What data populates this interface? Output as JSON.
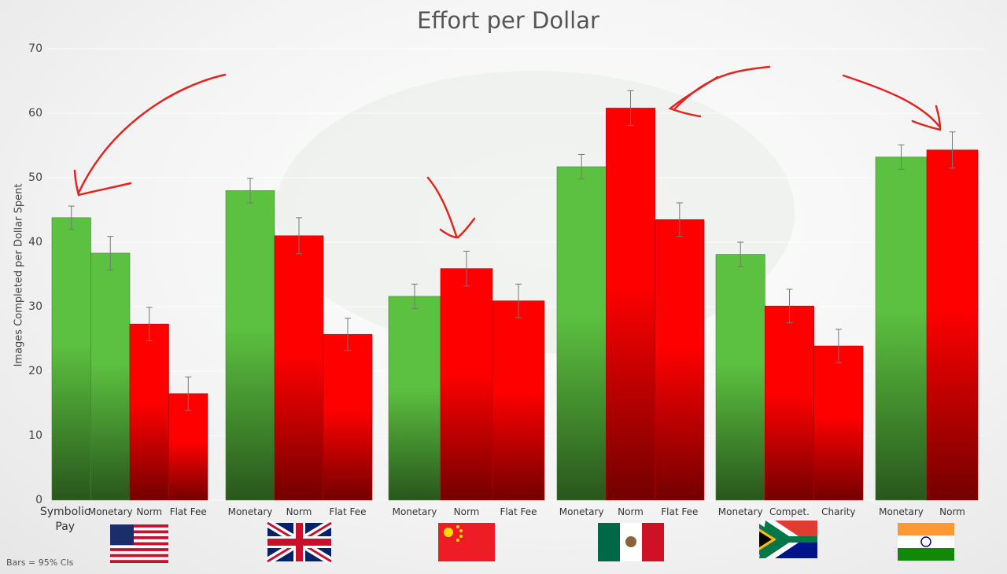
{
  "chart_data": {
    "type": "bar",
    "title": "Effort per Dollar",
    "y_label": "Images Completed per Dollar Spent",
    "note": "Bars = 95% CIs",
    "ylim": [
      0,
      70
    ],
    "yticks": [
      0,
      10,
      20,
      30,
      40,
      50,
      60,
      70
    ],
    "grid": true,
    "groups": [
      {
        "bars": [
          {
            "label": "Symbolic Pay",
            "value": 43.8,
            "error": 1.8,
            "color": "#5cc040"
          },
          {
            "label": "Monetary",
            "value": 38.3,
            "error": 2.6,
            "color": "#5cc040"
          },
          {
            "label": "Norm",
            "value": 27.3,
            "error": 2.6,
            "color": "#ff0000"
          },
          {
            "label": "Flat Fee",
            "value": 16.5,
            "error": 2.6,
            "color": "#ff0000"
          }
        ]
      },
      {
        "bars": [
          {
            "label": "Monetary",
            "value": 48.0,
            "error": 1.9,
            "color": "#5cc040"
          },
          {
            "label": "Norm",
            "value": 41.0,
            "error": 2.8,
            "color": "#ff0000"
          },
          {
            "label": "Flat Fee",
            "value": 25.7,
            "error": 2.5,
            "color": "#ff0000"
          }
        ]
      },
      {
        "bars": [
          {
            "label": "Monetary",
            "value": 31.6,
            "error": 1.9,
            "color": "#5cc040"
          },
          {
            "label": "Norm",
            "value": 35.9,
            "error": 2.7,
            "color": "#ff0000"
          },
          {
            "label": "Flat Fee",
            "value": 30.9,
            "error": 2.6,
            "color": "#ff0000"
          }
        ]
      },
      {
        "bars": [
          {
            "label": "Monetary",
            "value": 51.7,
            "error": 1.9,
            "color": "#5cc040"
          },
          {
            "label": "Norm",
            "value": 60.8,
            "error": 2.7,
            "color": "#ff0000"
          },
          {
            "label": "Flat Fee",
            "value": 43.5,
            "error": 2.6,
            "color": "#ff0000"
          }
        ]
      },
      {
        "bars": [
          {
            "label": "Monetary",
            "value": 38.1,
            "error": 1.9,
            "color": "#5cc040"
          },
          {
            "label": "Compet.",
            "value": 30.1,
            "error": 2.6,
            "color": "#ff0000"
          },
          {
            "label": "Charity",
            "value": 23.9,
            "error": 2.6,
            "color": "#ff0000"
          }
        ]
      },
      {
        "bars": [
          {
            "label": "Monetary",
            "value": 53.2,
            "error": 1.9,
            "color": "#5cc040"
          },
          {
            "label": "Norm",
            "value": 54.3,
            "error": 2.8,
            "color": "#ff0000"
          }
        ]
      }
    ]
  }
}
